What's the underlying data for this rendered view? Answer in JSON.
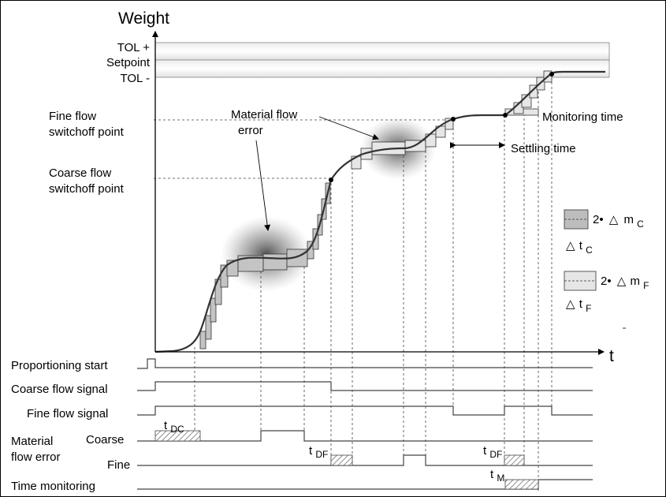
{
  "axes": {
    "y_label": "Weight",
    "x_label": "t"
  },
  "levels": {
    "tol_plus": "TOL +",
    "setpoint": "Setpoint",
    "tol_minus": "TOL -",
    "fine_switch_line1": "Fine flow",
    "fine_switch_line2": "switchoff point",
    "coarse_switch_line1": "Coarse flow",
    "coarse_switch_line2": "switchoff point"
  },
  "annotations": {
    "material_flow_error_line1": "Material flow",
    "material_flow_error_line2": "error",
    "monitoring_time": "Monitoring time",
    "settling_time": "Settling time"
  },
  "legend": {
    "coarse": {
      "prefix": "2•",
      "delta": "△",
      "m": "m",
      "m_sub": "C",
      "t": "t",
      "t_sub": "C"
    },
    "fine": {
      "prefix": "2•",
      "delta": "△",
      "m": "m",
      "m_sub": "F",
      "t": "t",
      "t_sub": "F"
    }
  },
  "signals": {
    "proportioning_start": "Proportioning start",
    "coarse_flow_signal": "Coarse flow signal",
    "fine_flow_signal": "Fine flow signal",
    "material_line1": "Material",
    "material_line2": "flow error",
    "coarse": "Coarse",
    "fine": "Fine",
    "time_monitoring": "Time monitoring"
  },
  "time_marks": {
    "t_dc": {
      "t": "t",
      "sub": "DC"
    },
    "t_df_1": {
      "t": "t",
      "sub": "DF"
    },
    "t_df_2": {
      "t": "t",
      "sub": "DF"
    },
    "t_m": {
      "t": "t",
      "sub": "M"
    }
  }
}
